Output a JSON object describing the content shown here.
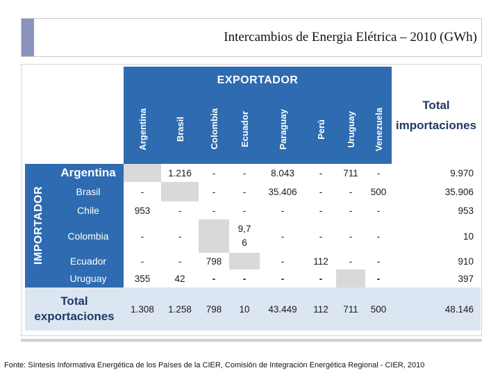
{
  "title": "Intercambios de Energia Elétrica – 2010 (GWh)",
  "exporter_label": "EXPORTADOR",
  "importer_label": "IMPORTADOR",
  "columns": [
    "Argentina",
    "Brasil",
    "Colombia",
    "Ecuador",
    "Paraguay",
    "Perú",
    "Uruguay",
    "Venezuela"
  ],
  "total_imports_label": [
    "Total",
    "importaciones"
  ],
  "rows": [
    {
      "name": "Argentina",
      "values": [
        "",
        "1.216",
        "-",
        "-",
        "8.043",
        "-",
        "711",
        "-"
      ],
      "total": "9.970"
    },
    {
      "name": "Brasil",
      "values": [
        "-",
        "",
        "-",
        "-",
        "35.406",
        "-",
        "-",
        "500"
      ],
      "total": "35.906"
    },
    {
      "name": "Chile",
      "values": [
        "953",
        "-",
        "-",
        "-",
        "-",
        "-",
        "-",
        "-"
      ],
      "total": "953"
    },
    {
      "name": "Colombia",
      "values": [
        "-",
        "-",
        "",
        "9,7\n6",
        "-",
        "-",
        "-",
        "-"
      ],
      "total": "10"
    },
    {
      "name": "Ecuador",
      "values": [
        "-",
        "-",
        "798",
        "",
        "-",
        "112",
        "-",
        "-"
      ],
      "total": "910"
    },
    {
      "name": "Uruguay",
      "values": [
        "355",
        "42",
        "-",
        "-",
        "-",
        "-",
        "",
        "-"
      ],
      "total": "397"
    }
  ],
  "total_exports_label": [
    "Total",
    "exportaciones"
  ],
  "total_exports": [
    "1.308",
    "1.258",
    "798",
    "10",
    "43.449",
    "112",
    "711",
    "500"
  ],
  "grand_total": "48.146",
  "source": "Fonte: Síntesis Informativa Energética de los Países de la CIER, Comisión de Integración Energética Regional - CIER, 2010"
}
